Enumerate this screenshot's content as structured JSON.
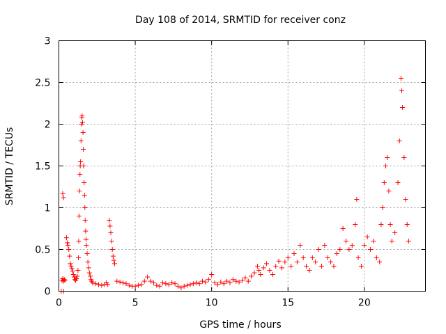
{
  "chart_data": {
    "type": "scatter",
    "title": "Day 108 of 2014, SRMTID for receiver conz",
    "xlabel": "GPS time / hours",
    "ylabel": "SRMTID / TECUs",
    "xlim": [
      0,
      24
    ],
    "ylim": [
      0,
      3
    ],
    "xticks": [
      0,
      5,
      10,
      15,
      20
    ],
    "xtick_labels": [
      "0",
      "5",
      "10",
      "15",
      "20"
    ],
    "yticks": [
      0,
      0.5,
      1,
      1.5,
      2,
      2.5,
      3
    ],
    "ytick_labels": [
      "0",
      "0.5",
      "1",
      "1.5",
      "2",
      "2.5",
      "3"
    ],
    "grid": true,
    "marker": "+",
    "color": "#ff0000",
    "series": [
      {
        "name": "conz",
        "points": [
          [
            0.15,
            0.0
          ],
          [
            0.3,
            0.0
          ],
          [
            0.2,
            0.13
          ],
          [
            0.25,
            0.15
          ],
          [
            0.3,
            0.12
          ],
          [
            0.35,
            0.14
          ],
          [
            0.4,
            0.13
          ],
          [
            0.25,
            1.17
          ],
          [
            0.3,
            1.12
          ],
          [
            0.5,
            0.64
          ],
          [
            0.55,
            0.58
          ],
          [
            0.6,
            0.55
          ],
          [
            0.65,
            0.5
          ],
          [
            0.7,
            0.42
          ],
          [
            0.75,
            0.33
          ],
          [
            0.8,
            0.3
          ],
          [
            0.85,
            0.27
          ],
          [
            0.9,
            0.24
          ],
          [
            0.95,
            0.2
          ],
          [
            1.0,
            0.17
          ],
          [
            1.05,
            0.14
          ],
          [
            1.1,
            0.13
          ],
          [
            1.15,
            0.15
          ],
          [
            1.2,
            0.18
          ],
          [
            1.25,
            0.25
          ],
          [
            1.28,
            0.4
          ],
          [
            1.3,
            0.6
          ],
          [
            1.32,
            0.9
          ],
          [
            1.35,
            1.2
          ],
          [
            1.38,
            1.4
          ],
          [
            1.4,
            1.5
          ],
          [
            1.42,
            1.55
          ],
          [
            1.45,
            1.8
          ],
          [
            1.48,
            2.0
          ],
          [
            1.5,
            2.08
          ],
          [
            1.52,
            2.1
          ],
          [
            1.55,
            2.02
          ],
          [
            1.58,
            1.9
          ],
          [
            1.6,
            1.7
          ],
          [
            1.62,
            1.5
          ],
          [
            1.65,
            1.3
          ],
          [
            1.68,
            1.15
          ],
          [
            1.7,
            1.0
          ],
          [
            1.72,
            0.85
          ],
          [
            1.75,
            0.72
          ],
          [
            1.78,
            0.62
          ],
          [
            1.8,
            0.55
          ],
          [
            1.85,
            0.45
          ],
          [
            1.9,
            0.35
          ],
          [
            1.95,
            0.28
          ],
          [
            2.0,
            0.22
          ],
          [
            2.05,
            0.18
          ],
          [
            2.1,
            0.14
          ],
          [
            2.15,
            0.12
          ],
          [
            2.2,
            0.1
          ],
          [
            2.4,
            0.09
          ],
          [
            2.6,
            0.08
          ],
          [
            2.8,
            0.07
          ],
          [
            3.0,
            0.08
          ],
          [
            3.1,
            0.1
          ],
          [
            3.2,
            0.08
          ],
          [
            3.3,
            0.85
          ],
          [
            3.35,
            0.78
          ],
          [
            3.4,
            0.7
          ],
          [
            3.45,
            0.6
          ],
          [
            3.5,
            0.5
          ],
          [
            3.55,
            0.42
          ],
          [
            3.6,
            0.37
          ],
          [
            3.65,
            0.33
          ],
          [
            3.8,
            0.12
          ],
          [
            4.0,
            0.11
          ],
          [
            4.2,
            0.1
          ],
          [
            4.4,
            0.09
          ],
          [
            4.6,
            0.07
          ],
          [
            4.8,
            0.06
          ],
          [
            5.0,
            0.06
          ],
          [
            5.2,
            0.07
          ],
          [
            5.4,
            0.08
          ],
          [
            5.6,
            0.12
          ],
          [
            5.8,
            0.17
          ],
          [
            6.0,
            0.12
          ],
          [
            6.2,
            0.1
          ],
          [
            6.4,
            0.07
          ],
          [
            6.6,
            0.06
          ],
          [
            6.8,
            0.1
          ],
          [
            7.0,
            0.09
          ],
          [
            7.2,
            0.08
          ],
          [
            7.4,
            0.1
          ],
          [
            7.6,
            0.09
          ],
          [
            7.8,
            0.06
          ],
          [
            8.0,
            0.04
          ],
          [
            8.2,
            0.06
          ],
          [
            8.4,
            0.07
          ],
          [
            8.6,
            0.08
          ],
          [
            8.8,
            0.09
          ],
          [
            9.0,
            0.1
          ],
          [
            9.2,
            0.09
          ],
          [
            9.4,
            0.12
          ],
          [
            9.6,
            0.11
          ],
          [
            9.8,
            0.14
          ],
          [
            10.0,
            0.2
          ],
          [
            10.2,
            0.1
          ],
          [
            10.4,
            0.08
          ],
          [
            10.6,
            0.11
          ],
          [
            10.8,
            0.09
          ],
          [
            11.0,
            0.12
          ],
          [
            11.2,
            0.1
          ],
          [
            11.4,
            0.14
          ],
          [
            11.6,
            0.12
          ],
          [
            11.8,
            0.11
          ],
          [
            12.0,
            0.13
          ],
          [
            12.2,
            0.16
          ],
          [
            12.4,
            0.12
          ],
          [
            12.6,
            0.18
          ],
          [
            12.8,
            0.22
          ],
          [
            13.0,
            0.3
          ],
          [
            13.1,
            0.25
          ],
          [
            13.2,
            0.2
          ],
          [
            13.4,
            0.28
          ],
          [
            13.6,
            0.33
          ],
          [
            13.8,
            0.25
          ],
          [
            14.0,
            0.2
          ],
          [
            14.2,
            0.3
          ],
          [
            14.4,
            0.36
          ],
          [
            14.6,
            0.28
          ],
          [
            14.8,
            0.35
          ],
          [
            15.0,
            0.4
          ],
          [
            15.2,
            0.3
          ],
          [
            15.4,
            0.45
          ],
          [
            15.6,
            0.35
          ],
          [
            15.8,
            0.55
          ],
          [
            16.0,
            0.4
          ],
          [
            16.2,
            0.3
          ],
          [
            16.4,
            0.25
          ],
          [
            16.6,
            0.4
          ],
          [
            16.8,
            0.35
          ],
          [
            17.0,
            0.5
          ],
          [
            17.2,
            0.3
          ],
          [
            17.4,
            0.55
          ],
          [
            17.6,
            0.4
          ],
          [
            17.8,
            0.35
          ],
          [
            18.0,
            0.3
          ],
          [
            18.2,
            0.45
          ],
          [
            18.4,
            0.5
          ],
          [
            18.6,
            0.75
          ],
          [
            18.8,
            0.6
          ],
          [
            19.0,
            0.5
          ],
          [
            19.2,
            0.55
          ],
          [
            19.4,
            0.8
          ],
          [
            19.5,
            1.1
          ],
          [
            19.6,
            0.4
          ],
          [
            19.8,
            0.3
          ],
          [
            20.0,
            0.55
          ],
          [
            20.2,
            0.65
          ],
          [
            20.4,
            0.5
          ],
          [
            20.6,
            0.6
          ],
          [
            20.8,
            0.4
          ],
          [
            21.0,
            0.35
          ],
          [
            21.1,
            0.8
          ],
          [
            21.2,
            1.0
          ],
          [
            21.3,
            1.3
          ],
          [
            21.4,
            1.5
          ],
          [
            21.5,
            1.6
          ],
          [
            21.6,
            1.2
          ],
          [
            21.7,
            0.8
          ],
          [
            21.8,
            0.6
          ],
          [
            22.0,
            0.7
          ],
          [
            22.2,
            1.3
          ],
          [
            22.3,
            1.8
          ],
          [
            22.4,
            2.55
          ],
          [
            22.45,
            2.4
          ],
          [
            22.5,
            2.2
          ],
          [
            22.6,
            1.6
          ],
          [
            22.7,
            1.1
          ],
          [
            22.8,
            0.8
          ],
          [
            22.9,
            0.6
          ]
        ]
      }
    ]
  }
}
